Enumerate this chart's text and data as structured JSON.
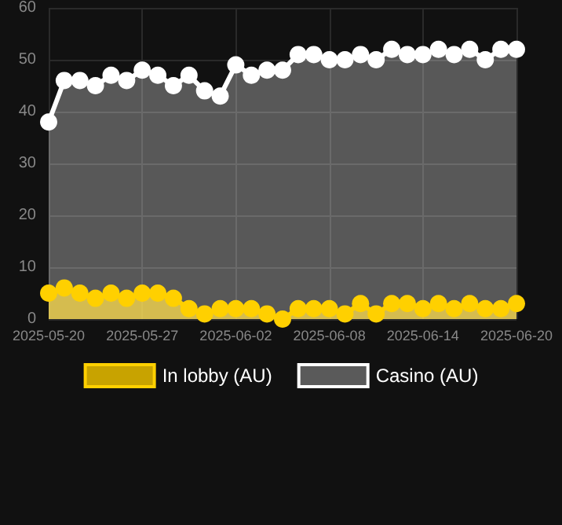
{
  "chart_data": {
    "type": "area",
    "categories": [
      "2025-05-20",
      null,
      null,
      null,
      null,
      null,
      "2025-05-27",
      null,
      null,
      null,
      null,
      null,
      "2025-06-02",
      null,
      null,
      null,
      null,
      null,
      "2025-06-08",
      null,
      null,
      null,
      null,
      null,
      "2025-06-14",
      null,
      null,
      null,
      null,
      null,
      "2025-06-20"
    ],
    "series": [
      {
        "name": "In lobby (AU)",
        "color": "#ffd000",
        "values": [
          5,
          6,
          5,
          4,
          5,
          4,
          5,
          5,
          4,
          2,
          1,
          2,
          2,
          2,
          1,
          0,
          2,
          2,
          2,
          1,
          3,
          1,
          3,
          3,
          2,
          3,
          2,
          3,
          2,
          2,
          3
        ]
      },
      {
        "name": "Casino (AU)",
        "color": "#ffffff",
        "values": [
          38,
          46,
          46,
          45,
          47,
          46,
          48,
          47,
          45,
          47,
          44,
          43,
          49,
          47,
          48,
          48,
          51,
          51,
          50,
          50,
          51,
          50,
          52,
          51,
          51,
          52,
          51,
          52,
          50,
          52,
          52
        ]
      }
    ],
    "ylim": [
      0,
      60
    ],
    "yticks": [
      0,
      10,
      20,
      30,
      40,
      50,
      60
    ],
    "grid": true,
    "legend": "bottom",
    "marker": "circle"
  }
}
